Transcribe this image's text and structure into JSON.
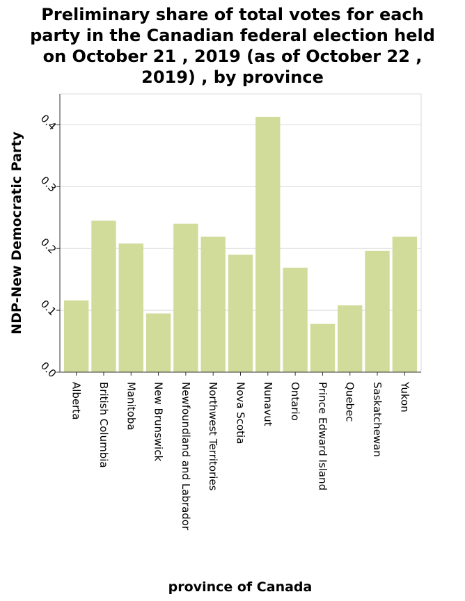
{
  "chart_data": {
    "type": "bar",
    "title_lines": [
      "Preliminary share of total votes for each",
      "party in the Canadian federal election held",
      "on October 21 , 2019 (as of October 22 ,",
      "2019) , by province"
    ],
    "xlabel": "province of Canada",
    "ylabel": "NDP-New Democratic Party",
    "ylim": [
      0,
      0.45
    ],
    "yticks": [
      0.0,
      0.1,
      0.2,
      0.3,
      0.4
    ],
    "ytick_labels": [
      "0.0",
      "0.1",
      "0.2",
      "0.3",
      "0.4"
    ],
    "grid": true,
    "categories": [
      "Alberta",
      "British Columbia",
      "Manitoba",
      "New Brunswick",
      "Newfoundland and Labrador",
      "Northwest Territories",
      "Nova Scotia",
      "Nunavut",
      "Ontario",
      "Prince Edward Island",
      "Quebec",
      "Saskatchewan",
      "Yukon"
    ],
    "values": [
      0.116,
      0.245,
      0.208,
      0.095,
      0.24,
      0.219,
      0.19,
      0.413,
      0.169,
      0.078,
      0.108,
      0.196,
      0.219
    ],
    "bar_color": "#d1dc9b",
    "grid_color": "#d9d9d9"
  }
}
